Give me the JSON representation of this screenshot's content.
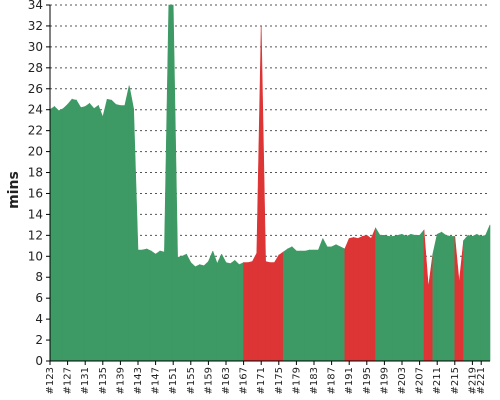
{
  "chart_data": {
    "type": "area",
    "title": "",
    "xlabel": "",
    "ylabel": "mins",
    "ylim": [
      0,
      34
    ],
    "yticks": [
      0,
      2,
      4,
      6,
      8,
      10,
      12,
      14,
      16,
      18,
      20,
      22,
      24,
      26,
      28,
      30,
      32,
      34
    ],
    "xtick_labels": [
      "#123",
      "#127",
      "#131",
      "#135",
      "#139",
      "#143",
      "#147",
      "#151",
      "#155",
      "#159",
      "#163",
      "#167",
      "#171",
      "#175",
      "#179",
      "#183",
      "#187",
      "#191",
      "#195",
      "#199",
      "#203",
      "#207",
      "#211",
      "#215",
      "#219",
      "#221"
    ],
    "grid": true,
    "colors": {
      "pass": "#3e9a64",
      "fail": "#dd3535",
      "grid": "#555555",
      "axis": "#000000"
    },
    "x": [
      123,
      124,
      125,
      126,
      127,
      128,
      129,
      130,
      131,
      132,
      133,
      134,
      135,
      136,
      137,
      138,
      139,
      140,
      141,
      142,
      143,
      144,
      145,
      146,
      147,
      148,
      149,
      150,
      151,
      152,
      153,
      154,
      155,
      156,
      157,
      158,
      159,
      160,
      161,
      162,
      163,
      164,
      165,
      166,
      167,
      168,
      169,
      170,
      171,
      172,
      173,
      174,
      175,
      176,
      177,
      178,
      179,
      180,
      181,
      182,
      183,
      184,
      185,
      186,
      187,
      188,
      189,
      190,
      191,
      192,
      193,
      194,
      195,
      196,
      197,
      198,
      199,
      200,
      201,
      202,
      203,
      204,
      205,
      206,
      207,
      208,
      209,
      210,
      211,
      212,
      213,
      214,
      215,
      216,
      217,
      218,
      219,
      220,
      221,
      222,
      223
    ],
    "values": [
      24.0,
      24.3,
      23.9,
      24.1,
      24.5,
      25.0,
      24.9,
      24.2,
      24.3,
      24.6,
      24.1,
      24.4,
      23.3,
      25.0,
      24.9,
      24.5,
      24.4,
      24.4,
      26.3,
      24.1,
      10.6,
      10.6,
      10.7,
      10.5,
      10.2,
      10.5,
      10.4,
      34.0,
      34.0,
      9.9,
      10.0,
      10.2,
      9.4,
      9.0,
      9.2,
      9.1,
      9.5,
      10.5,
      9.3,
      10.2,
      9.4,
      9.3,
      9.6,
      9.2,
      9.4,
      9.4,
      9.5,
      10.3,
      32.0,
      9.5,
      9.4,
      9.4,
      10.1,
      10.4,
      10.7,
      10.9,
      10.5,
      10.5,
      10.5,
      10.6,
      10.6,
      10.6,
      11.7,
      10.9,
      10.9,
      11.1,
      10.9,
      10.7,
      11.7,
      11.8,
      11.7,
      11.9,
      12.0,
      11.7,
      12.7,
      12.0,
      12.0,
      11.9,
      11.9,
      12.0,
      12.1,
      11.9,
      12.1,
      12.0,
      12.0,
      12.5,
      7.0,
      10.2,
      12.1,
      12.3,
      12.0,
      11.9,
      11.9,
      7.5,
      11.5,
      12.0,
      11.9,
      12.1,
      11.9,
      12.0,
      13.0
    ],
    "status": [
      "pass",
      "pass",
      "pass",
      "pass",
      "pass",
      "pass",
      "pass",
      "pass",
      "pass",
      "pass",
      "pass",
      "pass",
      "pass",
      "pass",
      "pass",
      "pass",
      "pass",
      "pass",
      "pass",
      "pass",
      "pass",
      "pass",
      "pass",
      "pass",
      "pass",
      "pass",
      "pass",
      "pass",
      "pass",
      "pass",
      "pass",
      "pass",
      "pass",
      "pass",
      "pass",
      "pass",
      "pass",
      "pass",
      "pass",
      "pass",
      "pass",
      "pass",
      "pass",
      "pass",
      "pass",
      "fail",
      "fail",
      "fail",
      "fail",
      "fail",
      "fail",
      "fail",
      "fail",
      "pass",
      "pass",
      "pass",
      "pass",
      "pass",
      "pass",
      "pass",
      "pass",
      "pass",
      "pass",
      "pass",
      "pass",
      "pass",
      "pass",
      "pass",
      "fail",
      "fail",
      "fail",
      "fail",
      "fail",
      "fail",
      "pass",
      "pass",
      "pass",
      "pass",
      "pass",
      "pass",
      "pass",
      "pass",
      "pass",
      "pass",
      "pass",
      "pass",
      "fail",
      "pass",
      "pass",
      "pass",
      "pass",
      "pass",
      "pass",
      "fail",
      "pass",
      "pass",
      "pass",
      "pass",
      "pass",
      "pass",
      "pass"
    ]
  }
}
